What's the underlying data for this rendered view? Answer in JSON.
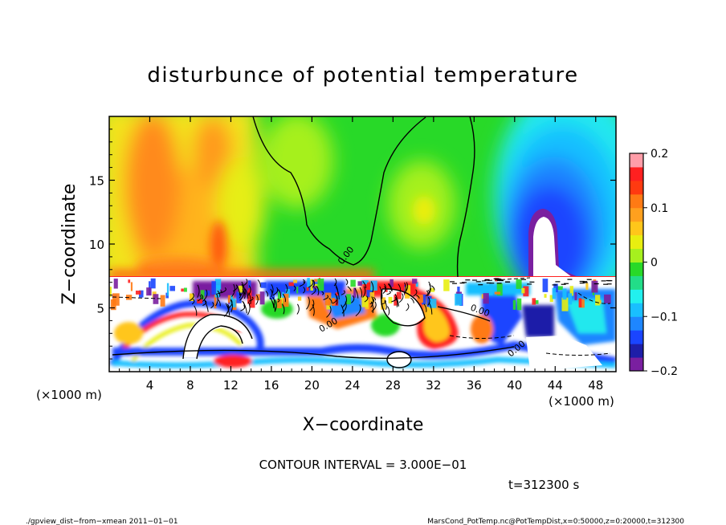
{
  "chart_data": {
    "type": "heatmap",
    "title": "disturbunce of potential temperature",
    "xlabel": "X−coordinate",
    "ylabel": "Z−coordinate",
    "x_unit_left": "(×1000 m)",
    "x_unit_right": "(×1000 m)",
    "xlim": [
      0,
      50
    ],
    "ylim": [
      0,
      20
    ],
    "x_ticks": [
      4,
      8,
      12,
      16,
      20,
      24,
      28,
      32,
      36,
      40,
      44,
      48
    ],
    "x_tick_labels": [
      "4",
      "8",
      "12",
      "16",
      "20",
      "24",
      "28",
      "32",
      "36",
      "40",
      "44",
      "48"
    ],
    "y_ticks": [
      5,
      10,
      15
    ],
    "y_tick_labels": [
      "5",
      "10",
      "15"
    ],
    "colorbar": {
      "range": [
        -0.2,
        0.2
      ],
      "ticks": [
        0.2,
        0.1,
        0,
        -0.1,
        -0.2
      ],
      "tick_labels": [
        "0.2",
        "0.1",
        "0",
        "−0.1",
        "−0.2"
      ],
      "colors": [
        "#7a1fa0",
        "#1e1ea8",
        "#1a45ff",
        "#1e86ff",
        "#19bfff",
        "#22f0ee",
        "#22dd88",
        "#28d928",
        "#a6f01e",
        "#e8ee10",
        "#ffc61a",
        "#ffa01e",
        "#ff7a14",
        "#ff3a10",
        "#ff2020",
        "#ff9da8"
      ]
    },
    "contour_interval_text": "CONTOUR INTERVAL = 3.000E−01",
    "contour_labels": [
      "0.00",
      "0.00",
      "0.00",
      "0.00"
    ],
    "time_text": "t=312300 s",
    "footer_left": "./gpview_dist−from−xmean   2011−01−01",
    "footer_right": "MarsCond_PotTemp.nc@PotTempDist,x=0:50000,z=0:20000,t=312300"
  }
}
